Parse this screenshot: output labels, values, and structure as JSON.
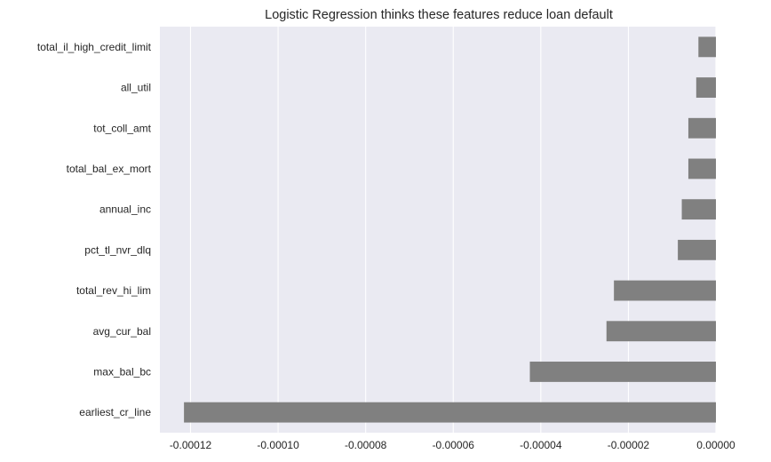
{
  "chart_data": {
    "type": "bar",
    "orientation": "horizontal",
    "title": "Logistic Regression thinks these features reduce loan default",
    "xlabel": "",
    "ylabel": "",
    "categories": [
      "total_il_high_credit_limit",
      "all_util",
      "tot_coll_amt",
      "total_bal_ex_mort",
      "annual_inc",
      "pct_tl_nvr_dlq",
      "total_rev_hi_lim",
      "avg_cur_bal",
      "max_bal_bc",
      "earliest_cr_line"
    ],
    "values": [
      -4e-06,
      -4.5e-06,
      -6.3e-06,
      -6.3e-06,
      -7.8e-06,
      -8.7e-06,
      -2.33e-05,
      -2.5e-05,
      -4.25e-05,
      -0.0001215
    ],
    "xlim": [
      -0.000127,
      0.0
    ],
    "xticks": [
      -0.00012,
      -0.0001,
      -8e-05,
      -6e-05,
      -4e-05,
      -2e-05,
      0.0
    ],
    "xtick_labels": [
      "-0.00012",
      "-0.00010",
      "-0.00008",
      "-0.00006",
      "-0.00004",
      "-0.00002",
      "0.00000"
    ],
    "grid": true,
    "colors": {
      "plot_background": "#eaeaf2",
      "grid": "#ffffff",
      "bar": "#808080",
      "text": "#262626"
    }
  }
}
